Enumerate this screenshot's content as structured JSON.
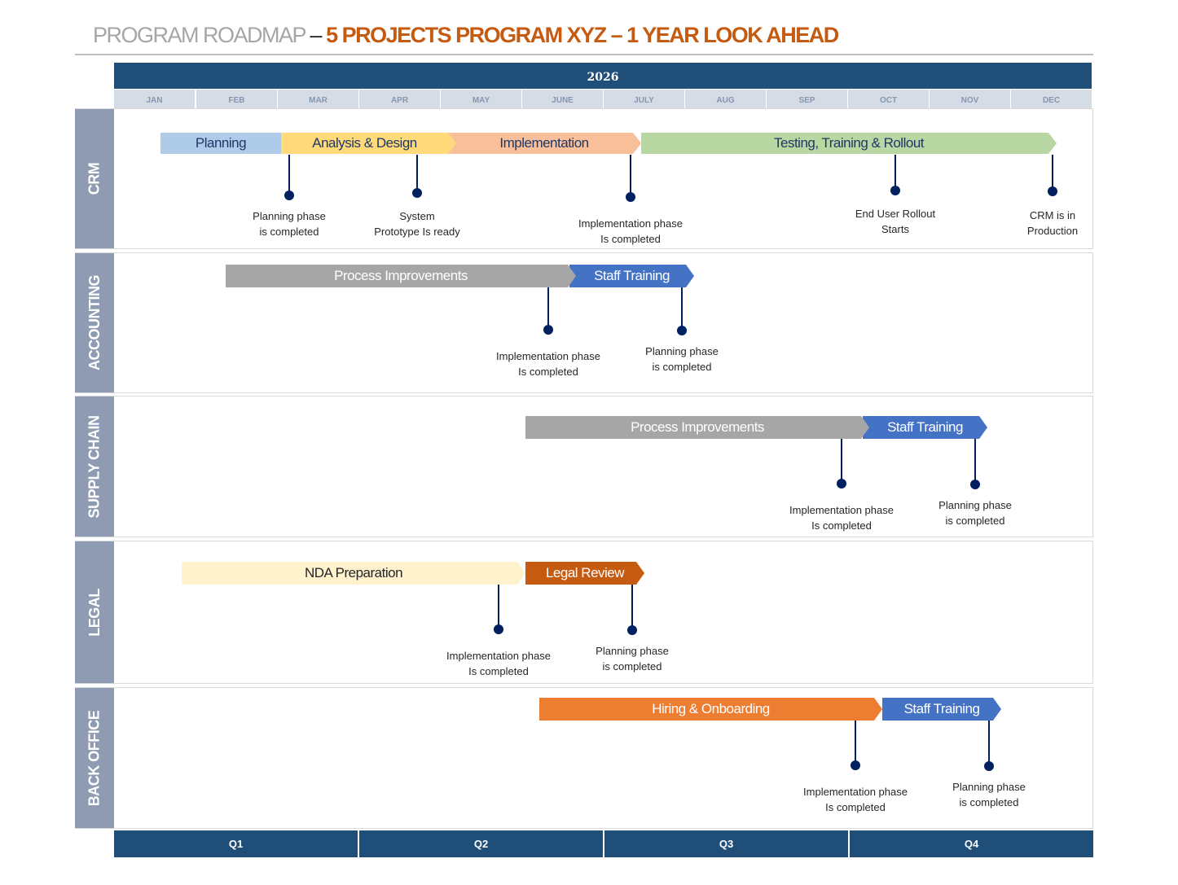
{
  "title": {
    "prefix": "PROGRAM ROADMAP",
    "separator": " – ",
    "main": "5 PROJECTS PROGRAM XYZ – 1 YEAR LOOK AHEAD"
  },
  "year": "2026",
  "months": [
    "JAN",
    "FEB",
    "MAR",
    "APR",
    "MAY",
    "JUNE",
    "JULY",
    "AUG",
    "SEP",
    "OCT",
    "NOV",
    "DEC"
  ],
  "quarters": [
    "Q1",
    "Q2",
    "Q3",
    "Q4"
  ],
  "colors": {
    "header": "#1f4e79",
    "title_accent": "#c55a11",
    "row_label": "#8e9bb3",
    "milestone": "#002060"
  },
  "rows": [
    {
      "name": "CRM",
      "bars": [
        {
          "label": "Planning",
          "color": "#aecbea"
        },
        {
          "label": "Analysis & Design",
          "color": "#ffd97a"
        },
        {
          "label": "Implementation",
          "color": "#f8bf9a"
        },
        {
          "label": "Testing, Training & Rollout",
          "color": "#b8d7a3"
        }
      ],
      "milestones": [
        "Planning phase\nis completed",
        "System\nPrototype Is ready",
        "Implementation phase\nIs completed",
        "End User Rollout\nStarts",
        "CRM is in\nProduction"
      ]
    },
    {
      "name": "ACCOUNTING",
      "bars": [
        {
          "label": "Process Improvements",
          "color": "#a6a6a6"
        },
        {
          "label": "Staff Training",
          "color": "#4472c4"
        }
      ],
      "milestones": [
        "Implementation phase\nIs completed",
        "Planning phase\nis completed"
      ]
    },
    {
      "name": "SUPPLY CHAIN",
      "bars": [
        {
          "label": "Process Improvements",
          "color": "#a6a6a6"
        },
        {
          "label": "Staff Training",
          "color": "#4472c4"
        }
      ],
      "milestones": [
        "Implementation phase\nIs completed",
        "Planning phase\nis completed"
      ]
    },
    {
      "name": "LEGAL",
      "bars": [
        {
          "label": "NDA Preparation",
          "color": "#fff2cc"
        },
        {
          "label": "Legal Review",
          "color": "#c55a11"
        }
      ],
      "milestones": [
        "Implementation phase\nIs completed",
        "Planning phase\nis completed"
      ]
    },
    {
      "name": "BACK OFFICE",
      "bars": [
        {
          "label": "Hiring & Onboarding",
          "color": "#ed7d31"
        },
        {
          "label": "Staff Training",
          "color": "#4472c4"
        }
      ],
      "milestones": [
        "Implementation phase\nIs completed",
        "Planning phase\nis completed"
      ]
    }
  ]
}
